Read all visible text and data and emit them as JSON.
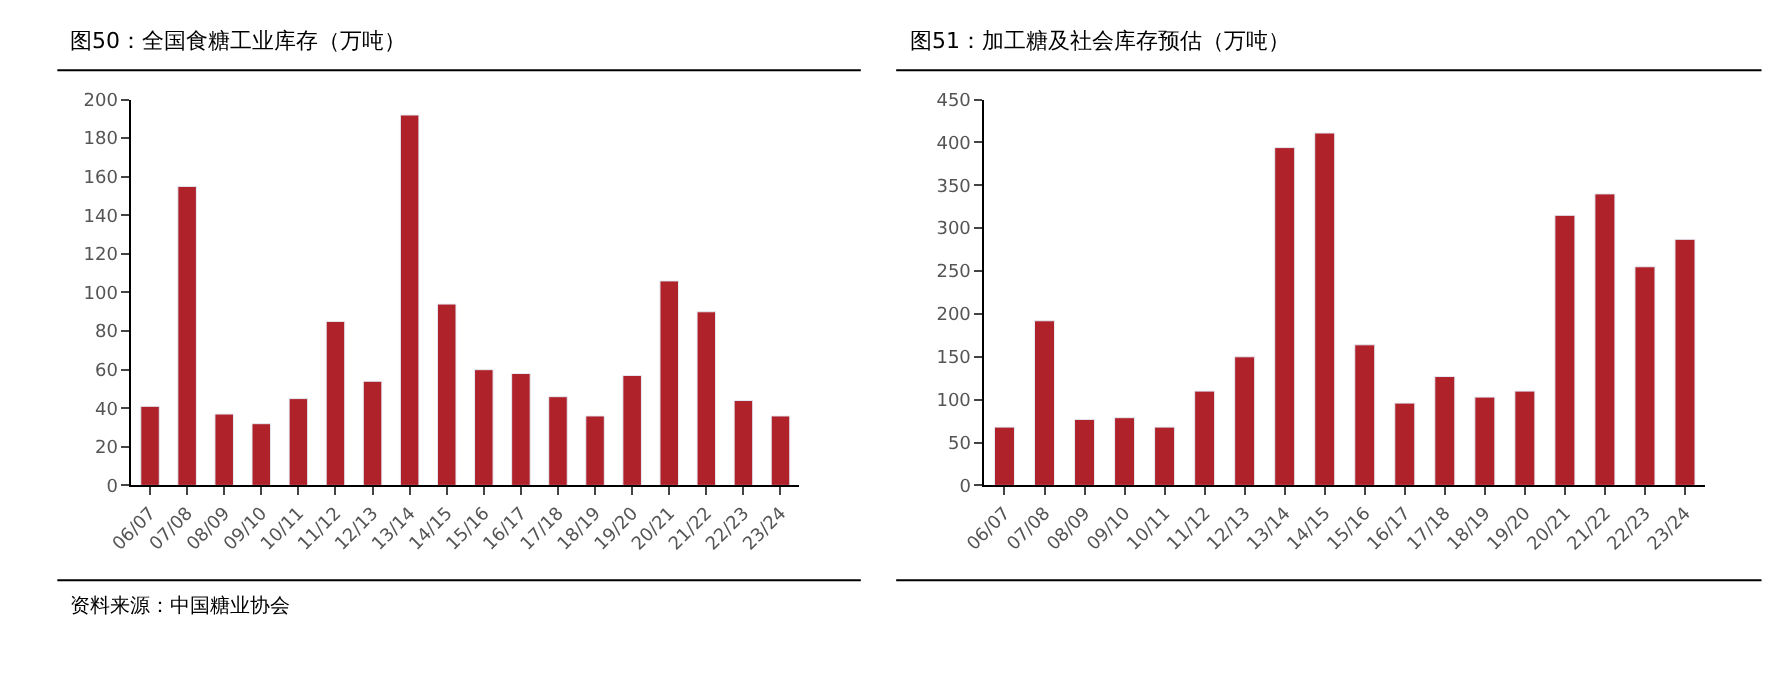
{
  "chart_data": [
    {
      "type": "bar",
      "title": "图50：全国食糖工业库存（万吨）",
      "categories": [
        "06/07",
        "07/08",
        "08/09",
        "09/10",
        "10/11",
        "11/12",
        "12/13",
        "13/14",
        "14/15",
        "15/16",
        "16/17",
        "17/18",
        "18/19",
        "19/20",
        "20/21",
        "21/22",
        "22/23",
        "23/24"
      ],
      "series": [
        {
          "color": "#b0222a",
          "values": [
            41,
            155,
            37,
            32,
            45,
            85,
            54,
            192,
            94,
            60,
            58,
            46,
            36,
            57,
            106,
            90,
            44,
            36
          ]
        }
      ],
      "ylim": [
        0,
        200
      ],
      "yticks": [
        0,
        20,
        40,
        60,
        80,
        100,
        120,
        140,
        160,
        180,
        200
      ],
      "annotations": [
        "资料来源：中国糖业协会"
      ]
    },
    {
      "type": "bar",
      "title": "图51：加工糖及社会库存预估（万吨）",
      "categories": [
        "06/07",
        "07/08",
        "08/09",
        "09/10",
        "10/11",
        "11/12",
        "12/13",
        "13/14",
        "14/15",
        "15/16",
        "16/17",
        "17/18",
        "18/19",
        "19/20",
        "20/21",
        "21/22",
        "22/23",
        "23/24"
      ],
      "series": [
        {
          "color": "#b0222a",
          "values": [
            68,
            192,
            77,
            79,
            68,
            110,
            150,
            394,
            411,
            164,
            96,
            127,
            103,
            110,
            315,
            340,
            255,
            287
          ]
        }
      ],
      "ylim": [
        0,
        450
      ],
      "yticks": [
        0,
        50,
        100,
        150,
        200,
        250,
        300,
        350,
        400,
        450
      ]
    }
  ]
}
